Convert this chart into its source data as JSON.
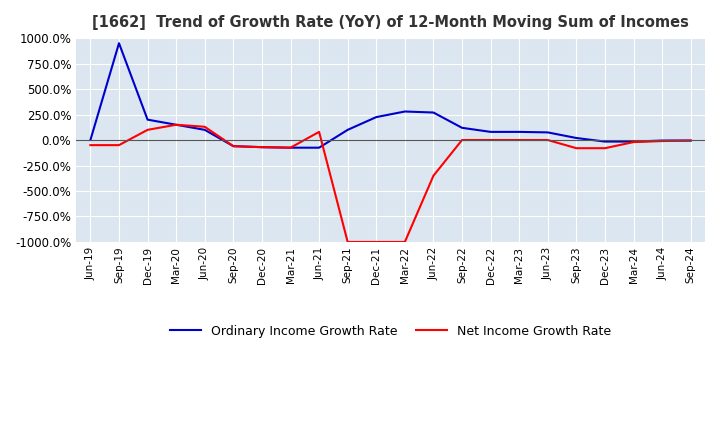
{
  "title": "[1662]  Trend of Growth Rate (YoY) of 12-Month Moving Sum of Incomes",
  "ylim": [
    -1000,
    1000
  ],
  "yticks": [
    1000,
    750,
    500,
    250,
    0,
    -250,
    -500,
    -750,
    -1000
  ],
  "background_color": "#ffffff",
  "plot_background_color": "#dce6f0",
  "grid_color": "#ffffff",
  "ordinary_color": "#0000cc",
  "net_color": "#ff0000",
  "legend_ordinary": "Ordinary Income Growth Rate",
  "legend_net": "Net Income Growth Rate",
  "x_labels": [
    "Jun-19",
    "Sep-19",
    "Dec-19",
    "Mar-20",
    "Jun-20",
    "Sep-20",
    "Dec-20",
    "Mar-21",
    "Jun-21",
    "Sep-21",
    "Dec-21",
    "Mar-22",
    "Jun-22",
    "Sep-22",
    "Dec-22",
    "Mar-23",
    "Jun-23",
    "Sep-23",
    "Dec-23",
    "Mar-24",
    "Jun-24",
    "Sep-24"
  ],
  "ordinary_income": [
    0,
    950,
    200,
    150,
    100,
    -60,
    -70,
    -75,
    -75,
    100,
    225,
    280,
    270,
    120,
    80,
    80,
    75,
    20,
    -15,
    -15,
    -5,
    -5
  ],
  "net_income": [
    -50,
    -50,
    100,
    150,
    130,
    -60,
    -70,
    -75,
    80,
    -1000,
    -1000,
    -1000,
    -350,
    0,
    0,
    0,
    0,
    -80,
    -80,
    -20,
    -10,
    -5
  ]
}
